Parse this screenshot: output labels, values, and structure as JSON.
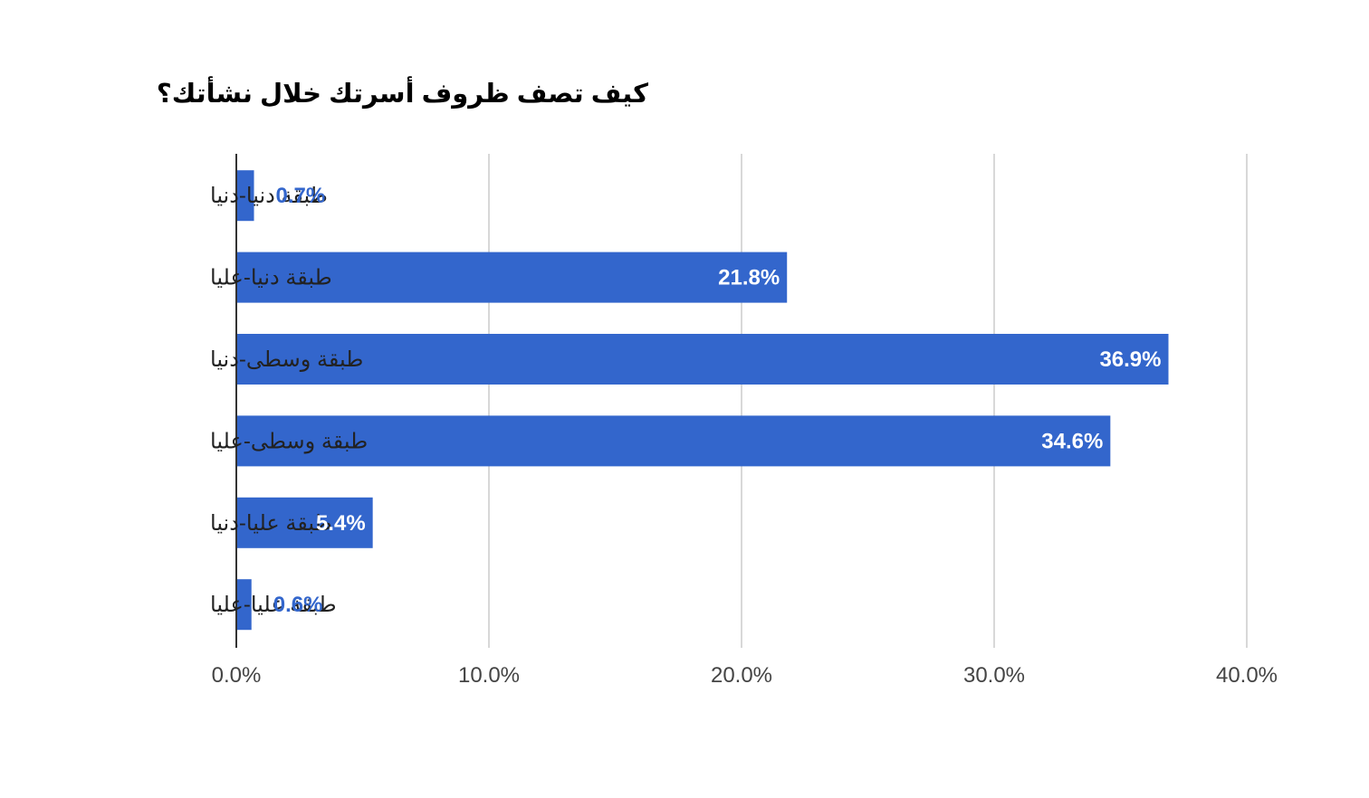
{
  "chart_data": {
    "type": "bar",
    "orientation": "horizontal",
    "title": "كيف تصف ظروف أسرتك خلال نشأتك؟",
    "xlabel": "",
    "ylabel": "",
    "categories": [
      "طبقة دنيا-دنيا",
      "طبقة دنيا-عليا",
      "طبقة وسطى-دنيا",
      "طبقة وسطى-عليا",
      "طبقة عليا-دنيا",
      "طبقة عليا-عليا"
    ],
    "values": [
      0.7,
      21.8,
      36.9,
      34.6,
      5.4,
      0.6
    ],
    "data_labels": [
      "0.7%",
      "21.8%",
      "36.9%",
      "34.6%",
      "5.4%",
      "0.6%"
    ],
    "xlim": [
      0,
      40
    ],
    "x_ticks": [
      0,
      10,
      20,
      30,
      40
    ],
    "x_tick_labels": [
      "0.0%",
      "10.0%",
      "20.0%",
      "30.0%",
      "40.0%"
    ],
    "grid": "vertical",
    "legend": "none",
    "colors": {
      "bar": "#3366cc",
      "label_inside": "#ffffff",
      "label_outside": "#3366cc",
      "grid": "#cccccc",
      "axis": "#333333"
    }
  }
}
